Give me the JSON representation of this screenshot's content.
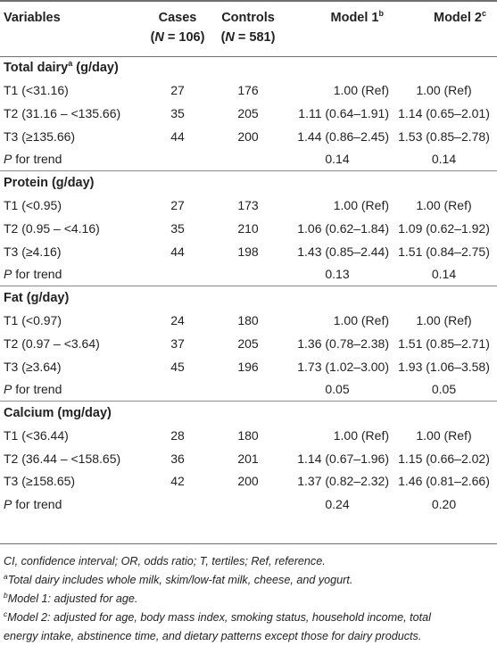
{
  "header": {
    "variables": "Variables",
    "cases_label": "Cases",
    "cases_n": "(N = 106)",
    "controls_label": "Controls",
    "controls_n": "(N = 581)",
    "model1": "Model 1",
    "model1_sup": "b",
    "model2": "Model 2",
    "model2_sup": "c"
  },
  "groups": [
    {
      "title": "Total dairy",
      "title_sup": "a",
      "title_unit": " (g/day)",
      "rows": [
        {
          "label": "T1 (<31.16)",
          "cases": "27",
          "controls": "176",
          "m1": "1.00 (Ref)",
          "m2": "1.00 (Ref)"
        },
        {
          "label": "T2 (31.16 – <135.66)",
          "cases": "35",
          "controls": "205",
          "m1": "1.11 (0.64–1.91)",
          "m2": "1.14 (0.65–2.01)"
        },
        {
          "label": "T3 (≥135.66)",
          "cases": "44",
          "controls": "200",
          "m1": "1.44 (0.86–2.45)",
          "m2": "1.53 (0.85–2.78)"
        }
      ],
      "trend": {
        "p": "P",
        "label": " for trend",
        "m1": "0.14",
        "m2": "0.14"
      }
    },
    {
      "title": "Protein (g/day)",
      "title_sup": "",
      "title_unit": "",
      "rows": [
        {
          "label": "T1 (<0.95)",
          "cases": "27",
          "controls": "173",
          "m1": "1.00 (Ref)",
          "m2": "1.00 (Ref)"
        },
        {
          "label": "T2 (0.95 – <4.16)",
          "cases": "35",
          "controls": "210",
          "m1": "1.06 (0.62–1.84)",
          "m2": "1.09 (0.62–1.92)"
        },
        {
          "label": "T3 (≥4.16)",
          "cases": "44",
          "controls": "198",
          "m1": "1.43 (0.85–2.44)",
          "m2": "1.51 (0.84–2.75)"
        }
      ],
      "trend": {
        "p": "P",
        "label": " for trend",
        "m1": "0.13",
        "m2": "0.14"
      }
    },
    {
      "title": "Fat (g/day)",
      "title_sup": "",
      "title_unit": "",
      "rows": [
        {
          "label": "T1 (<0.97)",
          "cases": "24",
          "controls": "180",
          "m1": "1.00 (Ref)",
          "m2": "1.00 (Ref)"
        },
        {
          "label": "T2 (0.97 – <3.64)",
          "cases": "37",
          "controls": "205",
          "m1": "1.36 (0.78–2.38)",
          "m2": "1.51 (0.85–2.71)"
        },
        {
          "label": "T3 (≥3.64)",
          "cases": "45",
          "controls": "196",
          "m1": "1.73 (1.02–3.00)",
          "m2": "1.93 (1.06–3.58)"
        }
      ],
      "trend": {
        "p": "P",
        "label": " for trend",
        "m1": "0.05",
        "m2": "0.05"
      }
    },
    {
      "title": "Calcium (mg/day)",
      "title_sup": "",
      "title_unit": "",
      "rows": [
        {
          "label": "T1 (<36.44)",
          "cases": "28",
          "controls": "180",
          "m1": "1.00 (Ref)",
          "m2": "1.00 (Ref)"
        },
        {
          "label": "T2 (36.44 – <158.65)",
          "cases": "36",
          "controls": "201",
          "m1": "1.14 (0.67–1.96)",
          "m2": "1.15 (0.66–2.02)"
        },
        {
          "label": "T3 (≥158.65)",
          "cases": "42",
          "controls": "200",
          "m1": "1.37 (0.82–2.32)",
          "m2": "1.46 (0.81–2.66)"
        }
      ],
      "trend": {
        "p": "P",
        "label": " for trend",
        "m1": "0.24",
        "m2": "0.20"
      }
    }
  ],
  "notes": {
    "abbrev": "CI, confidence interval; OR, odds ratio; T, tertiles; Ref, reference.",
    "a_sup": "a",
    "a_text": "Total dairy includes whole milk, skim/low-fat milk, cheese, and yogurt.",
    "b_sup": "b",
    "b_text": "Model 1: adjusted for age.",
    "c_sup": "c",
    "c_text_1": "Model 2: adjusted for age, body mass index, smoking status, household income, total",
    "c_text_2": "energy intake, abstinence time, and dietary patterns except those for dairy products."
  }
}
